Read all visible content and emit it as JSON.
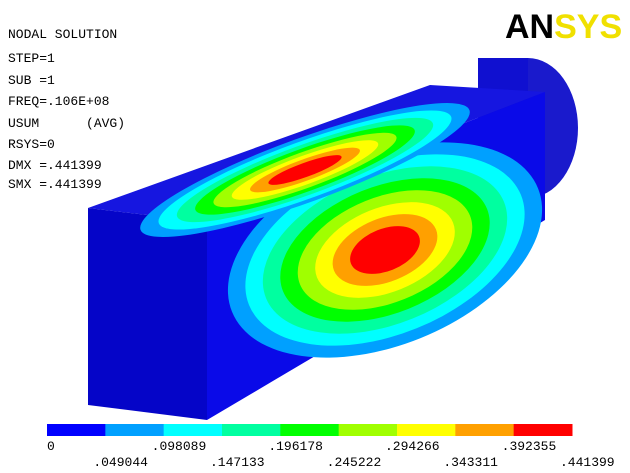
{
  "header": {
    "logo_an": "AN",
    "logo_sys": "SYS"
  },
  "info": [
    "NODAL SOLUTION",
    "STEP=1",
    "SUB =1",
    "FREQ=.106E+08",
    "USUM      (AVG)",
    "RSYS=0",
    "DMX =.441399",
    "SMX =.441399"
  ],
  "legend": {
    "labels": [
      "0",
      ".049044",
      ".098089",
      ".147133",
      ".196178",
      ".245222",
      ".294266",
      ".343311",
      ".392355",
      ".441399"
    ],
    "colors": [
      "#0000ff",
      "#00a0ff",
      "#00ffff",
      "#00ffa0",
      "#00ff00",
      "#a0ff00",
      "#ffff00",
      "#ffa000",
      "#ff0000"
    ]
  }
}
